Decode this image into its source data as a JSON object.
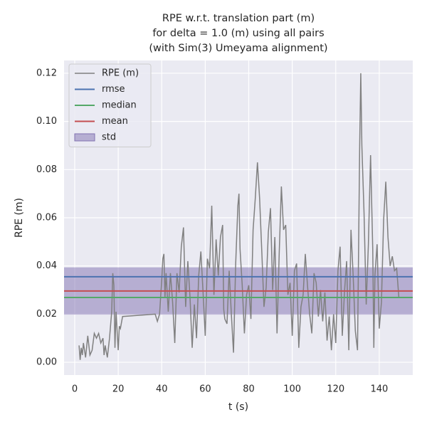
{
  "chart_data": {
    "type": "line",
    "title": [
      "RPE w.r.t. translation part (m)",
      "for delta = 1.0 (m) using all pairs",
      "(with Sim(3) Umeyama alignment)"
    ],
    "xlabel": "t (s)",
    "ylabel": "RPE (m)",
    "xlim": [
      -4.9,
      155.4
    ],
    "ylim": [
      -0.0053,
      0.1253
    ],
    "xticks": [
      0,
      20,
      40,
      60,
      80,
      100,
      120,
      140
    ],
    "yticks": [
      {
        "value": 0,
        "label": "0.00"
      },
      {
        "value": 0.02,
        "label": "0.02"
      },
      0.04,
      0.06,
      0.08,
      {
        "value": 0.1,
        "label": "0.10"
      },
      0.12
    ],
    "grid": true,
    "legend": "upper left",
    "series": [
      {
        "name": "RPE (m)",
        "color": "#808080",
        "x": [
          2,
          2.5,
          3,
          3.5,
          4,
          5,
          6,
          7,
          8,
          9,
          10,
          11,
          12,
          13,
          13.5,
          14,
          15,
          16,
          17,
          17.5,
          18,
          18.5,
          19,
          20,
          20.5,
          21,
          22,
          37,
          38,
          39,
          40,
          40.5,
          41,
          41.5,
          42,
          43,
          44,
          45,
          46,
          47,
          48,
          49,
          50,
          51,
          52,
          53,
          54,
          55,
          56,
          57,
          58,
          59,
          60,
          61,
          62,
          63,
          64,
          65,
          66,
          67,
          68,
          68.5,
          69,
          70,
          71,
          72,
          73,
          74,
          75,
          75.5,
          76,
          77,
          78,
          79,
          80,
          81,
          82,
          83,
          84,
          85,
          86,
          87,
          88,
          89,
          90,
          91,
          92,
          93,
          94,
          95,
          96,
          97,
          98,
          99,
          100,
          101,
          102,
          103,
          104,
          105,
          106,
          107,
          108,
          109,
          110,
          111,
          112,
          113,
          114,
          115,
          116,
          117,
          118,
          119,
          120,
          121,
          122,
          123,
          124,
          125,
          126,
          127,
          128,
          129,
          130,
          131,
          131.5,
          132,
          133,
          134,
          135,
          136,
          137,
          137.5,
          138,
          139,
          140,
          141,
          142,
          143,
          144,
          145,
          146,
          147,
          148,
          149
        ],
        "values": [
          0.007,
          0.001,
          0.006,
          0.003,
          0.008,
          0.002,
          0.011,
          0.003,
          0.005,
          0.012,
          0.01,
          0.012,
          0.008,
          0.01,
          0.003,
          0.007,
          0.002,
          0.01,
          0.021,
          0.037,
          0.032,
          0.006,
          0.021,
          0.005,
          0.015,
          0.014,
          0.019,
          0.02,
          0.017,
          0.02,
          0.034,
          0.043,
          0.045,
          0.027,
          0.037,
          0.021,
          0.037,
          0.025,
          0.008,
          0.037,
          0.029,
          0.048,
          0.056,
          0.023,
          0.042,
          0.027,
          0.006,
          0.024,
          0.01,
          0.036,
          0.046,
          0.029,
          0.011,
          0.043,
          0.039,
          0.065,
          0.028,
          0.051,
          0.036,
          0.052,
          0.057,
          0.022,
          0.018,
          0.016,
          0.038,
          0.02,
          0.004,
          0.041,
          0.065,
          0.07,
          0.047,
          0.032,
          0.012,
          0.028,
          0.032,
          0.018,
          0.055,
          0.068,
          0.083,
          0.068,
          0.046,
          0.023,
          0.031,
          0.054,
          0.064,
          0.03,
          0.052,
          0.012,
          0.045,
          0.073,
          0.055,
          0.057,
          0.028,
          0.033,
          0.011,
          0.038,
          0.041,
          0.006,
          0.023,
          0.028,
          0.045,
          0.032,
          0.02,
          0.012,
          0.037,
          0.033,
          0.019,
          0.03,
          0.017,
          0.029,
          0.009,
          0.019,
          0.005,
          0.02,
          0.008,
          0.038,
          0.048,
          0.011,
          0.029,
          0.042,
          0.005,
          0.055,
          0.036,
          0.013,
          0.005,
          0.09,
          0.12,
          0.09,
          0.062,
          0.024,
          0.049,
          0.086,
          0.047,
          0.006,
          0.036,
          0.049,
          0.014,
          0.025,
          0.059,
          0.075,
          0.052,
          0.04,
          0.044,
          0.038,
          0.039,
          0.027
        ]
      }
    ],
    "reference_lines": [
      {
        "name": "rmse",
        "color": "#4c72b0",
        "value": 0.0355
      },
      {
        "name": "median",
        "color": "#55a868",
        "value": 0.0269
      },
      {
        "name": "mean",
        "color": "#c44e52",
        "value": 0.0296
      }
    ],
    "band": {
      "name": "std",
      "color": "#8172b2",
      "value": 0.0098
    }
  }
}
